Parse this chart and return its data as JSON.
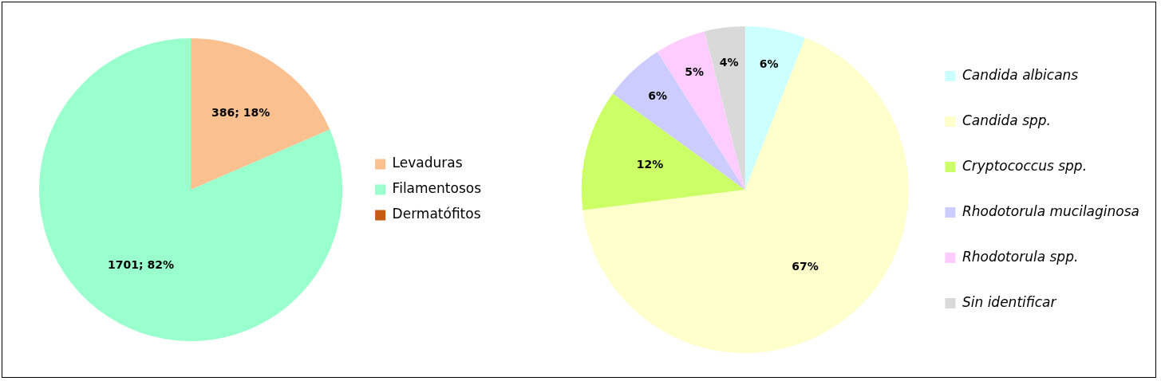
{
  "chart_data": [
    {
      "type": "pie",
      "categories": [
        "Levaduras",
        "Filamentosos",
        "Dermatófitos"
      ],
      "values": [
        386,
        1701,
        0
      ],
      "colors": [
        "#fac090",
        "#99ffcc",
        "#c55a11"
      ],
      "value_labels": [
        "386; 18%",
        "1701; 82%",
        null
      ],
      "legend": "right"
    },
    {
      "type": "pie",
      "categories": [
        "Candida albicans",
        "Candida spp.",
        "Cryptococcus spp.",
        "Rhodotorula mucilaginosa",
        "Rhodotorula spp.",
        "Sin identificar"
      ],
      "values": [
        6,
        67,
        12,
        6,
        5,
        4
      ],
      "colors": [
        "#ccffff",
        "#ffffcc",
        "#ccff66",
        "#ccccff",
        "#ffccff",
        "#d9d9d9"
      ],
      "value_labels": [
        "6%",
        "67%",
        "12%",
        "6%",
        "5%",
        "4%"
      ],
      "legend": "right"
    }
  ]
}
